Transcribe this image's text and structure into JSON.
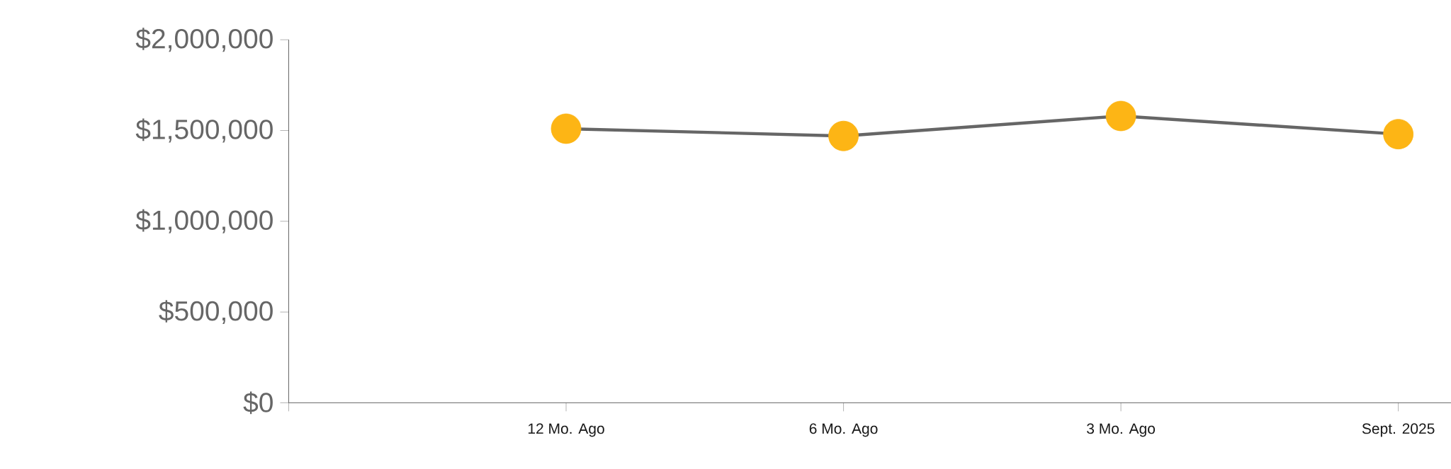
{
  "chart_data": {
    "type": "line",
    "categories": [
      "12 Mo. Ago",
      "6 Mo. Ago",
      "3 Mo. Ago",
      "Sept. 2025"
    ],
    "series": [
      {
        "color": "#666666",
        "colors": [
          "#fdb515",
          "#fdb515",
          "#fdb515",
          "#fdb515"
        ],
        "values": [
          1510000,
          1470000,
          1580000,
          1480000
        ]
      }
    ],
    "ylim": [
      0,
      2000000
    ],
    "yticks": [
      {
        "value": 0,
        "label": "$0"
      },
      {
        "value": 500000,
        "label": "$500,000"
      },
      {
        "value": 1000000,
        "label": "$1,000,000"
      },
      {
        "value": 1500000,
        "label": "$1,500,000"
      },
      {
        "value": 2000000,
        "label": "$2,000,000"
      }
    ],
    "marker": "circle"
  }
}
